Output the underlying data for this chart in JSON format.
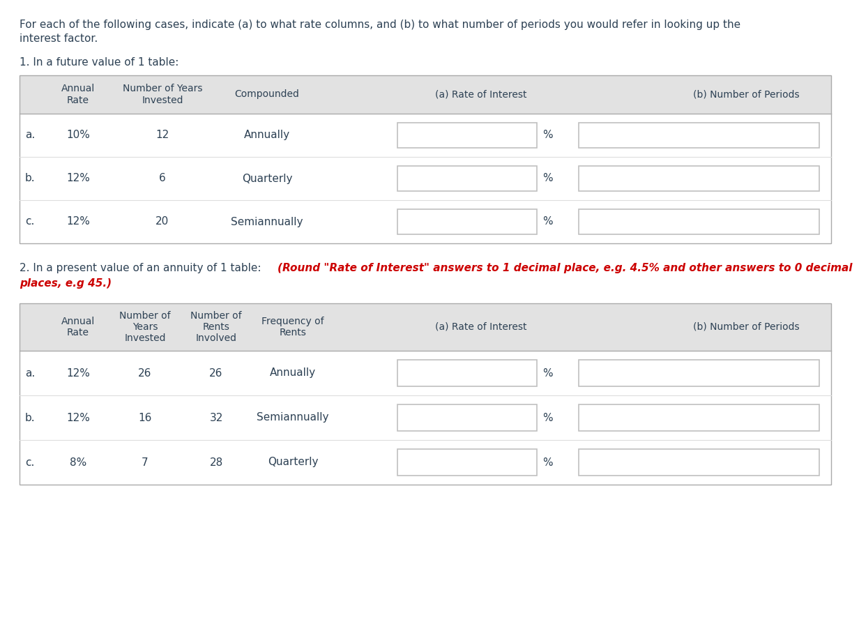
{
  "bg_color": "#ffffff",
  "text_color": "#2d4154",
  "header_bg": "#e2e2e2",
  "input_box_border": "#c0c0c0",
  "red_color": "#cc0000",
  "intro_line1": "For each of the following cases, indicate (a) to what rate columns, and (b) to what number of periods you would refer in looking up the",
  "intro_line2": "interest factor.",
  "section1_title": "1. In a future value of 1 table:",
  "section2_normal": "2. In a present value of an annuity of 1 table: ",
  "section2_red": "(Round \"Rate of Interest\" answers to 1 decimal place, e.g. 4.5% and other answers to 0 decimal",
  "section2_red2": "places, e.g 45.)",
  "table1_rows": [
    {
      "label": "a.",
      "annual_rate": "10%",
      "years": "12",
      "compounded": "Annually"
    },
    {
      "label": "b.",
      "annual_rate": "12%",
      "years": "6",
      "compounded": "Quarterly"
    },
    {
      "label": "c.",
      "annual_rate": "12%",
      "years": "20",
      "compounded": "Semiannually"
    }
  ],
  "table2_rows": [
    {
      "label": "a.",
      "annual_rate": "12%",
      "years": "26",
      "rents": "26",
      "frequency": "Annually"
    },
    {
      "label": "b.",
      "annual_rate": "12%",
      "years": "16",
      "rents": "32",
      "frequency": "Semiannually"
    },
    {
      "label": "c.",
      "annual_rate": "8%",
      "years": "7",
      "rents": "28",
      "frequency": "Quarterly"
    }
  ]
}
